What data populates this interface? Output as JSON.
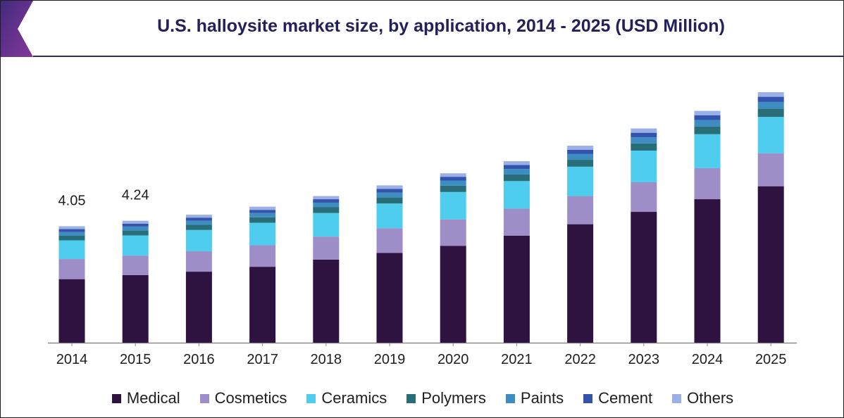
{
  "title": "U.S. halloysite market size, by application, 2014 - 2025 (USD Million)",
  "colors": {
    "Medical": "#2e1341",
    "Cosmetics": "#9d8ec8",
    "Ceramics": "#4fcdef",
    "Polymers": "#286e79",
    "Paints": "#3d8cc2",
    "Cement": "#3353ad",
    "Others": "#9ab0e6"
  },
  "chart_data": {
    "type": "bar",
    "stacked": true,
    "categories": [
      "2014",
      "2015",
      "2016",
      "2017",
      "2018",
      "2019",
      "2020",
      "2021",
      "2022",
      "2023",
      "2024",
      "2025"
    ],
    "series": [
      {
        "name": "Medical",
        "values": [
          2.21,
          2.35,
          2.47,
          2.64,
          2.89,
          3.12,
          3.37,
          3.72,
          4.12,
          4.55,
          4.99,
          5.44
        ]
      },
      {
        "name": "Cosmetics",
        "values": [
          0.7,
          0.68,
          0.71,
          0.75,
          0.8,
          0.86,
          0.92,
          0.94,
          0.98,
          1.03,
          1.08,
          1.15
        ]
      },
      {
        "name": "Ceramics",
        "values": [
          0.65,
          0.7,
          0.74,
          0.78,
          0.82,
          0.86,
          0.95,
          0.96,
          1.02,
          1.1,
          1.18,
          1.26
        ]
      },
      {
        "name": "Polymers",
        "values": [
          0.16,
          0.17,
          0.18,
          0.19,
          0.2,
          0.21,
          0.22,
          0.23,
          0.24,
          0.25,
          0.27,
          0.29
        ]
      },
      {
        "name": "Paints",
        "values": [
          0.13,
          0.14,
          0.14,
          0.15,
          0.16,
          0.17,
          0.18,
          0.19,
          0.2,
          0.21,
          0.22,
          0.23
        ]
      },
      {
        "name": "Cement",
        "values": [
          0.1,
          0.1,
          0.11,
          0.11,
          0.12,
          0.13,
          0.13,
          0.14,
          0.15,
          0.16,
          0.17,
          0.18
        ]
      },
      {
        "name": "Others",
        "values": [
          0.1,
          0.1,
          0.1,
          0.11,
          0.11,
          0.12,
          0.12,
          0.13,
          0.14,
          0.15,
          0.15,
          0.16
        ]
      }
    ],
    "data_labels": [
      {
        "category": "2014",
        "text": "4.05"
      },
      {
        "category": "2015",
        "text": "4.24"
      }
    ],
    "ylim": [
      0,
      9.2
    ],
    "legend_position": "bottom",
    "grid": false
  }
}
